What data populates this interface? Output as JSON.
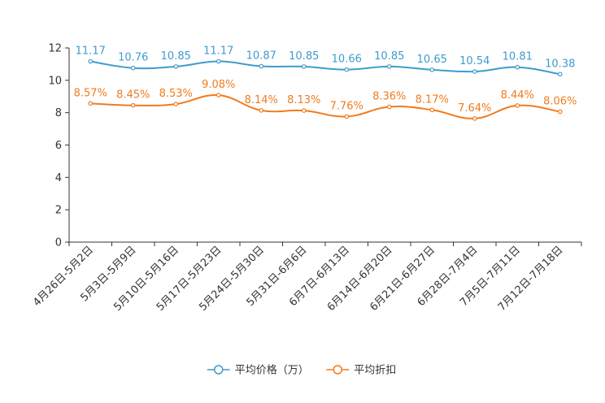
{
  "chart_data": {
    "type": "line",
    "title": "",
    "xlabel": "",
    "ylabel": "",
    "ylim": [
      0,
      12
    ],
    "yticks": [
      0,
      2,
      4,
      6,
      8,
      10,
      12
    ],
    "grid": false,
    "legend_position": "bottom-center",
    "categories": [
      "4月26日-5月2日",
      "5月3日-5月9日",
      "5月10日-5月16日",
      "5月17日-5月23日",
      "5月24日-5月30日",
      "5月31日-6月6日",
      "6月7日-6月13日",
      "6月14日-6月20日",
      "6月21日-6月27日",
      "6月28日-7月4日",
      "7月5日-7月11日",
      "7月12日-7月18日"
    ],
    "series": [
      {
        "name": "平均价格（万）",
        "color": "#3d9ccc",
        "values": [
          11.17,
          10.76,
          10.85,
          11.17,
          10.87,
          10.85,
          10.66,
          10.85,
          10.65,
          10.54,
          10.81,
          10.38
        ],
        "labels": [
          "11.17",
          "10.76",
          "10.85",
          "11.17",
          "10.87",
          "10.85",
          "10.66",
          "10.85",
          "10.65",
          "10.54",
          "10.81",
          "10.38"
        ]
      },
      {
        "name": "平均折扣",
        "color": "#f07b1e",
        "values": [
          8.57,
          8.45,
          8.53,
          9.08,
          8.14,
          8.13,
          7.76,
          8.36,
          8.17,
          7.64,
          8.44,
          8.06
        ],
        "labels": [
          "8.57%",
          "8.45%",
          "8.53%",
          "9.08%",
          "8.14%",
          "8.13%",
          "7.76%",
          "8.36%",
          "8.17%",
          "7.64%",
          "8.44%",
          "8.06%"
        ]
      }
    ]
  }
}
